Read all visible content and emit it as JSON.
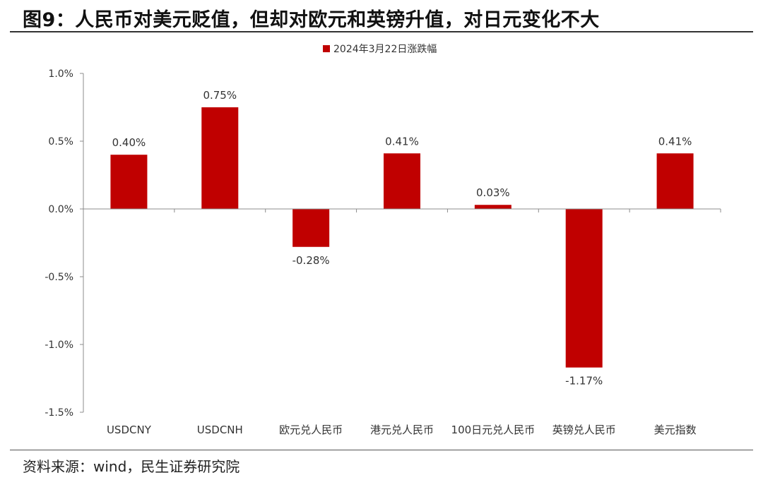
{
  "figure_title": "图9：人民币对美元贬值，但却对欧元和英镑升值，对日元变化不大",
  "source_note": "资料来源：wind，民生证券研究院",
  "colors": {
    "bar": "#C00000",
    "axis": "#8c8c8c",
    "text": "#333333"
  },
  "chart_data": {
    "type": "bar",
    "title": "",
    "xlabel": "",
    "ylabel": "",
    "ylim": [
      -1.5,
      1.0
    ],
    "yticks": [
      1.0,
      0.5,
      0.0,
      -0.5,
      -1.0,
      -1.5
    ],
    "ytick_labels": [
      "1.0%",
      "0.5%",
      "0.0%",
      "-0.5%",
      "-1.0%",
      "-1.5%"
    ],
    "legend_placement": "top-center",
    "grid": false,
    "categories": [
      "USDCNY",
      "USDCNH",
      "欧元兑人民币",
      "港元兑人民币",
      "100日元兑人民币",
      "英镑兑人民币",
      "美元指数"
    ],
    "series": [
      {
        "name": "2024年3月22日涨跌幅",
        "values": [
          0.4,
          0.75,
          -0.28,
          0.41,
          0.03,
          -1.17,
          0.41
        ],
        "labels": [
          "0.40%",
          "0.75%",
          "-0.28%",
          "0.41%",
          "0.03%",
          "-1.17%",
          "0.41%"
        ]
      }
    ]
  }
}
